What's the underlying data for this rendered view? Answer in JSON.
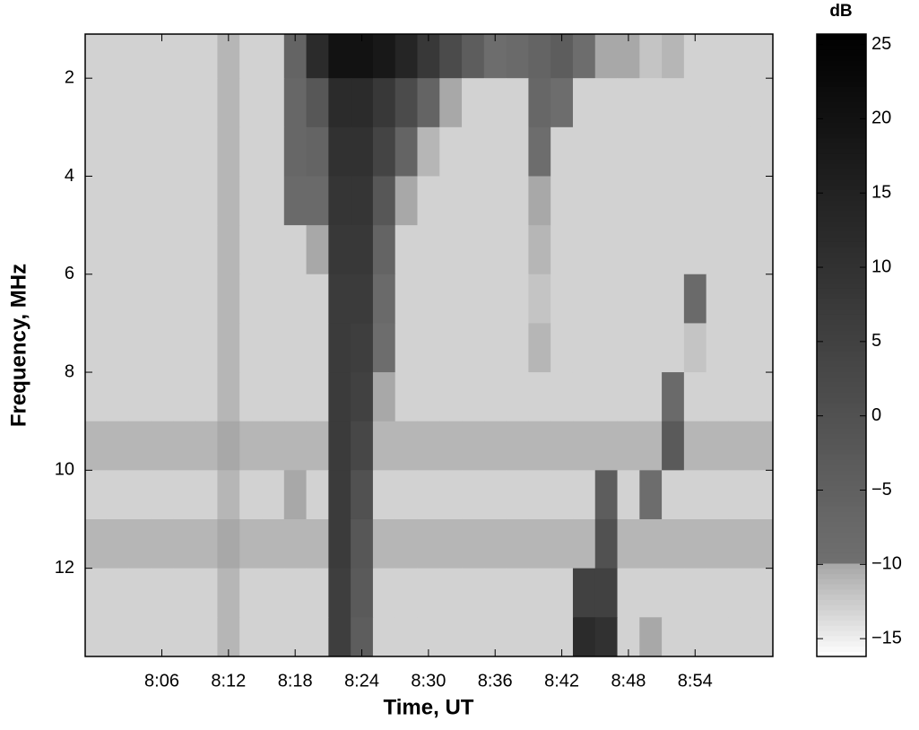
{
  "chart_data": {
    "type": "heatmap",
    "xlabel": "Time, UT",
    "ylabel": "Frequency, MHz",
    "colorbar_label": "dB",
    "xlim": [
      479.1,
      541
    ],
    "xticks": [
      {
        "value": 486,
        "label": "8:06"
      },
      {
        "value": 492,
        "label": "8:12"
      },
      {
        "value": 498,
        "label": "8:18"
      },
      {
        "value": 504,
        "label": "8:24"
      },
      {
        "value": 510,
        "label": "8:30"
      },
      {
        "value": 516,
        "label": "8:36"
      },
      {
        "value": 522,
        "label": "8:42"
      },
      {
        "value": 528,
        "label": "8:48"
      },
      {
        "value": 534,
        "label": "8:54"
      }
    ],
    "ylim": [
      1.1,
      13.8
    ],
    "y_reversed": true,
    "yticks": [
      2,
      4,
      6,
      8,
      10,
      12
    ],
    "clim": [
      -16.2,
      25.7
    ],
    "cticks": [
      {
        "value": -15,
        "label": "−15"
      },
      {
        "value": -10,
        "label": "−10"
      },
      {
        "value": -5,
        "label": "−5"
      },
      0,
      5,
      10,
      15,
      20,
      25
    ],
    "color_stops": [
      [
        -16.2,
        "#ffffff"
      ],
      [
        -10,
        "#a8a8a8"
      ],
      [
        -9.9,
        "#707070"
      ],
      [
        25.7,
        "#000000"
      ]
    ],
    "x": [
      480,
      482,
      484,
      486,
      488,
      490,
      492,
      494,
      496,
      498,
      500,
      502,
      504,
      506,
      508,
      510,
      512,
      514,
      516,
      518,
      520,
      522,
      524,
      526,
      528,
      530,
      532,
      534,
      536,
      538,
      540
    ],
    "y": [
      1.5,
      2.5,
      3.5,
      4.5,
      5.5,
      6.5,
      7.5,
      8.5,
      9.5,
      10.5,
      11.5,
      12.5,
      13.5
    ],
    "values": [
      [
        -13,
        -13,
        -13,
        -13,
        -13,
        -13,
        -11,
        -13,
        -13,
        -6,
        12,
        20,
        20,
        18,
        14,
        8,
        2,
        -4,
        -9,
        -8,
        -6,
        -4,
        -9,
        -10,
        -10,
        -12,
        -11,
        -13,
        -13,
        -13,
        -13
      ],
      [
        -13,
        -13,
        -13,
        -13,
        -13,
        -13,
        -11,
        -13,
        -13,
        -7,
        -2,
        12,
        12,
        8,
        2,
        -6,
        -10,
        -13,
        -13,
        -13,
        -7,
        -9,
        -13,
        -13,
        -13,
        -13,
        -13,
        -13,
        -13,
        -13,
        -13
      ],
      [
        -13,
        -13,
        -13,
        -13,
        -13,
        -13,
        -11,
        -13,
        -13,
        -7,
        -6,
        10,
        10,
        4,
        -6,
        -11,
        -13,
        -13,
        -13,
        -13,
        -9,
        -13,
        -13,
        -13,
        -13,
        -13,
        -13,
        -13,
        -13,
        -13,
        -13
      ],
      [
        -13,
        -13,
        -13,
        -13,
        -13,
        -13,
        -11,
        -13,
        -13,
        -8,
        -8,
        9,
        9,
        -2,
        -10,
        -13,
        -13,
        -13,
        -13,
        -13,
        -10,
        -13,
        -13,
        -13,
        -13,
        -13,
        -13,
        -13,
        -13,
        -13,
        -13
      ],
      [
        -13,
        -13,
        -13,
        -13,
        -13,
        -13,
        -11,
        -13,
        -13,
        -13,
        -10,
        8,
        8,
        -6,
        -13,
        -13,
        -13,
        -13,
        -13,
        -13,
        -11,
        -13,
        -13,
        -13,
        -13,
        -13,
        -13,
        -13,
        -13,
        -13,
        -13
      ],
      [
        -13,
        -13,
        -13,
        -13,
        -13,
        -13,
        -11,
        -13,
        -13,
        -13,
        -13,
        7,
        7,
        -8,
        -13,
        -13,
        -13,
        -13,
        -13,
        -13,
        -12,
        -13,
        -13,
        -13,
        -13,
        -13,
        -13,
        -8,
        -13,
        -13,
        -13
      ],
      [
        -13,
        -13,
        -13,
        -13,
        -13,
        -13,
        -11,
        -13,
        -13,
        -13,
        -13,
        7,
        6,
        -9,
        -13,
        -13,
        -13,
        -13,
        -13,
        -13,
        -11,
        -13,
        -13,
        -13,
        -13,
        -13,
        -13,
        -12,
        -13,
        -13,
        -13
      ],
      [
        -13,
        -13,
        -13,
        -13,
        -13,
        -13,
        -11,
        -13,
        -13,
        -13,
        -13,
        7,
        5,
        -10,
        -13,
        -13,
        -13,
        -13,
        -13,
        -13,
        -13,
        -13,
        -13,
        -13,
        -13,
        -13,
        -8,
        -13,
        -13,
        -13,
        -13
      ],
      [
        -11,
        -11,
        -11,
        -11,
        -11,
        -11,
        -10,
        -11,
        -11,
        -11,
        -11,
        7,
        3,
        -11,
        -11,
        -11,
        -11,
        -11,
        -11,
        -11,
        -11,
        -11,
        -11,
        -11,
        -11,
        -11,
        -3,
        -11,
        -11,
        -11,
        -11
      ],
      [
        -13,
        -13,
        -13,
        -13,
        -13,
        -13,
        -11,
        -13,
        -13,
        -10,
        -13,
        7,
        0,
        -13,
        -13,
        -13,
        -13,
        -13,
        -13,
        -13,
        -13,
        -13,
        -13,
        -4,
        -13,
        -9,
        -13,
        -13,
        -13,
        -13,
        -13
      ],
      [
        -11,
        -11,
        -11,
        -11,
        -11,
        -11,
        -10,
        -11,
        -11,
        -11,
        -11,
        7,
        -2,
        -11,
        -11,
        -11,
        -11,
        -11,
        -11,
        -11,
        -11,
        -11,
        -11,
        0,
        -11,
        -11,
        -11,
        -11,
        -11,
        -11,
        -11
      ],
      [
        -13,
        -13,
        -13,
        -13,
        -13,
        -13,
        -11,
        -13,
        -13,
        -13,
        -13,
        6,
        -3,
        -13,
        -13,
        -13,
        -13,
        -13,
        -13,
        -13,
        -13,
        -13,
        5,
        5,
        -13,
        -13,
        -13,
        -13,
        -13,
        -13,
        -13
      ],
      [
        -13,
        -13,
        -13,
        -13,
        -13,
        -13,
        -11,
        -13,
        -13,
        -13,
        -13,
        6,
        -4,
        -13,
        -13,
        -13,
        -13,
        -13,
        -13,
        -13,
        -13,
        -13,
        12,
        10,
        -13,
        -10,
        -13,
        -13,
        -13,
        -13,
        -13
      ]
    ]
  }
}
